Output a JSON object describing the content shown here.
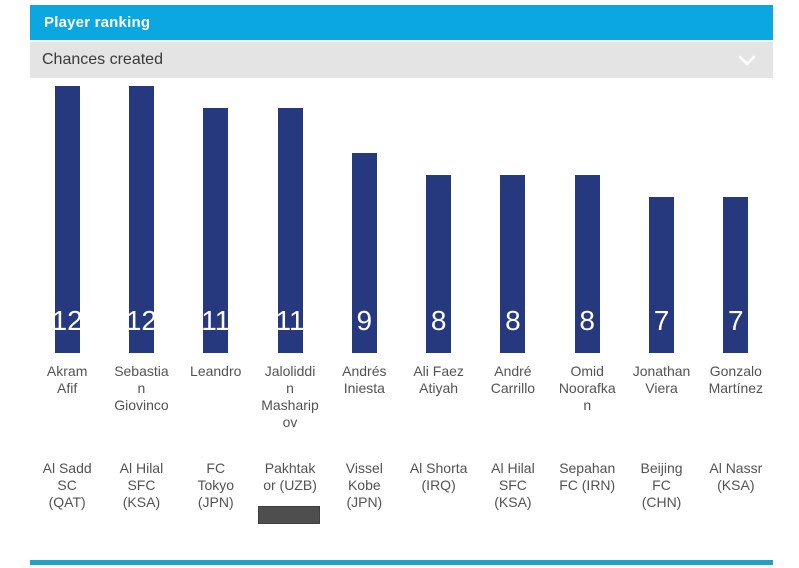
{
  "header": {
    "title": "Player ranking"
  },
  "dropdown": {
    "selected": "Chances created",
    "chevron_icon": "chevron-down"
  },
  "colors": {
    "header_bg": "#0BA7E1",
    "dropdown_bg": "#E4E4E4",
    "bar": "#27397E",
    "bar_value_text": "#FFFFFF",
    "label_text": "#535353",
    "bottom_line": "#22A1C6",
    "scrollbar_thumb": "#4E4E4E"
  },
  "chart_data": {
    "type": "bar",
    "title": "Player ranking",
    "metric": "Chances created",
    "categories": [
      "Akram Afif",
      "Sebastian Giovinco",
      "Leandro",
      "Jaloliddin Masharipov",
      "Andrés Iniesta",
      "Ali Faez Atiyah",
      "André Carrillo",
      "Omid Noorafkan",
      "Jonathan Viera",
      "Gonzalo Martínez"
    ],
    "teams": [
      "Al Sadd SC (QAT)",
      "Al Hilal SFC (KSA)",
      "FC Tokyo (JPN)",
      "Pakhtakor (UZB)",
      "Vissel Kobe (JPN)",
      "Al Shorta (IRQ)",
      "Al Hilal SFC (KSA)",
      "Sepahan FC (IRN)",
      "Beijing FC (CHN)",
      "Al Nassr (KSA)"
    ],
    "values": [
      12,
      12,
      11,
      11,
      9,
      8,
      8,
      8,
      7,
      7
    ],
    "xlabel": "",
    "ylabel": "",
    "ylim": [
      0,
      12
    ],
    "grid": false,
    "legend": false,
    "bar_labels_visible": true,
    "bar_label_position": "inside-bottom"
  }
}
